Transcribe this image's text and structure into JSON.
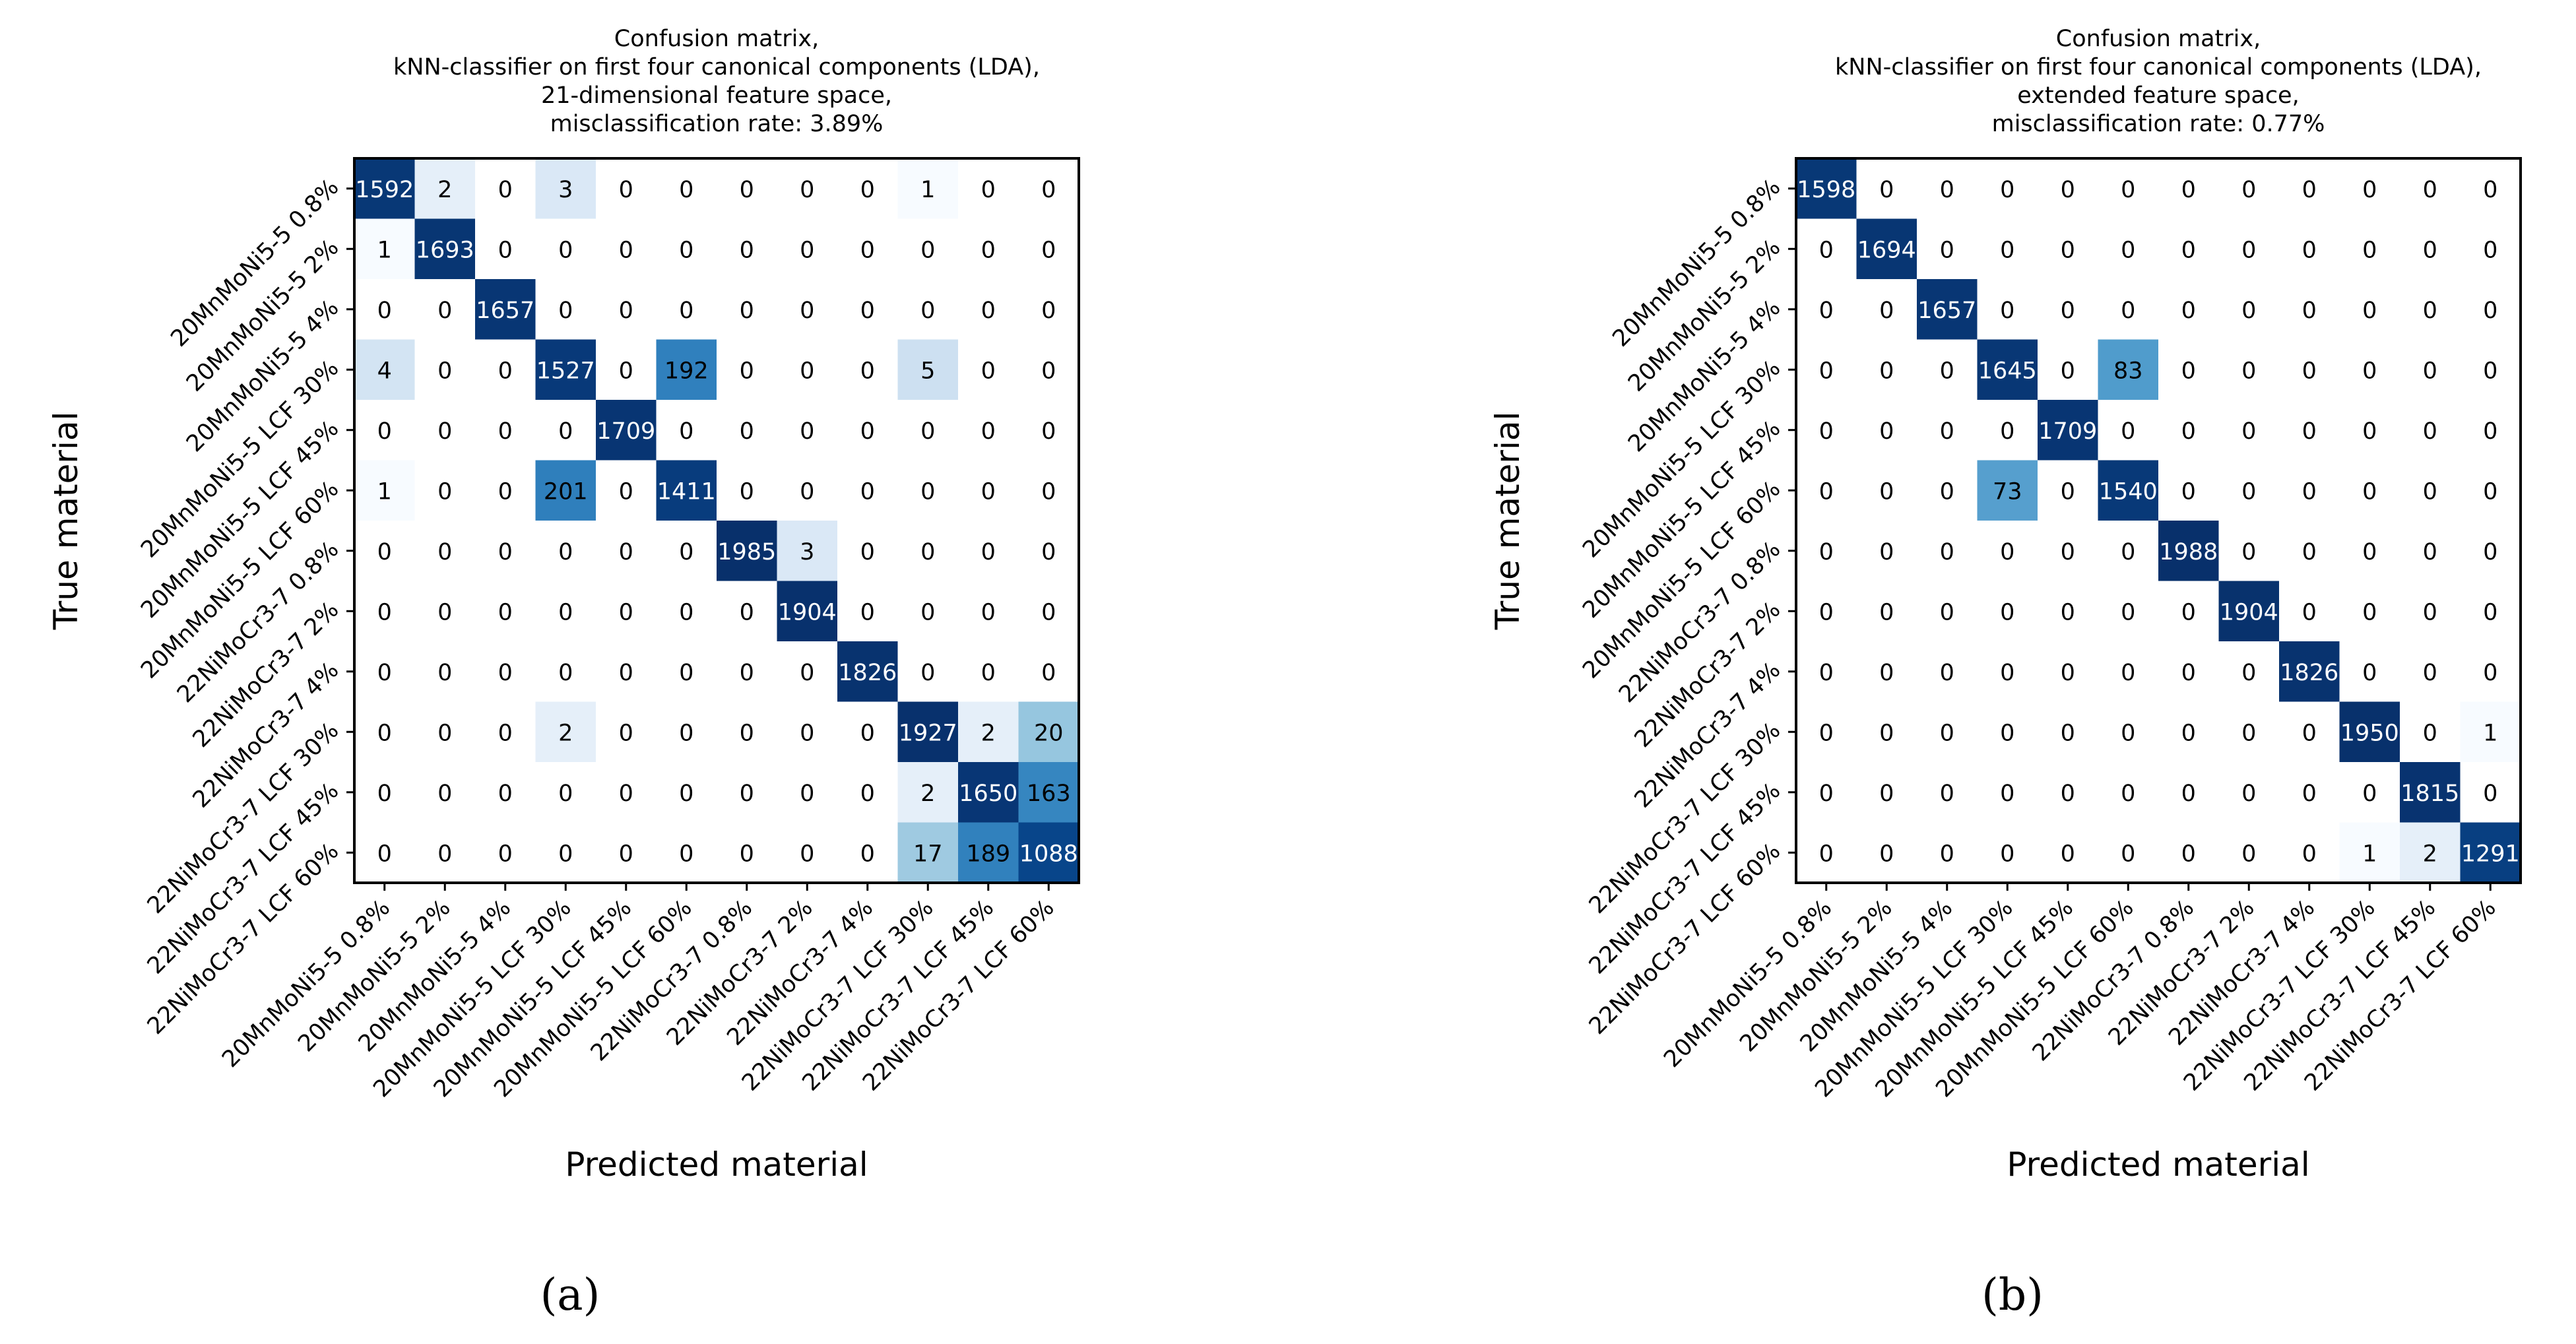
{
  "chart_data": [
    {
      "type": "heatmap",
      "panel_label": "(a)",
      "title_lines": [
        "Confusion matrix,",
        "kNN-classifier on first four canonical components (LDA),",
        "21-dimensional feature space,",
        "misclassification rate: 3.89%"
      ],
      "xlabel": "Predicted material",
      "ylabel": "True material",
      "categories": [
        "20MnMoNi5-5 0.8%",
        "20MnMoNi5-5 2%",
        "20MnMoNi5-5 4%",
        "20MnMoNi5-5 LCF 30%",
        "20MnMoNi5-5 LCF 45%",
        "20MnMoNi5-5 LCF 60%",
        "22NiMoCr3-7 0.8%",
        "22NiMoCr3-7 2%",
        "22NiMoCr3-7 4%",
        "22NiMoCr3-7 LCF 30%",
        "22NiMoCr3-7 LCF 45%",
        "22NiMoCr3-7 LCF 60%"
      ],
      "matrix": [
        [
          1592,
          2,
          0,
          3,
          0,
          0,
          0,
          0,
          0,
          1,
          0,
          0
        ],
        [
          1,
          1693,
          0,
          0,
          0,
          0,
          0,
          0,
          0,
          0,
          0,
          0
        ],
        [
          0,
          0,
          1657,
          0,
          0,
          0,
          0,
          0,
          0,
          0,
          0,
          0
        ],
        [
          4,
          0,
          0,
          1527,
          0,
          192,
          0,
          0,
          0,
          5,
          0,
          0
        ],
        [
          0,
          0,
          0,
          0,
          1709,
          0,
          0,
          0,
          0,
          0,
          0,
          0
        ],
        [
          1,
          0,
          0,
          201,
          0,
          1411,
          0,
          0,
          0,
          0,
          0,
          0
        ],
        [
          0,
          0,
          0,
          0,
          0,
          0,
          1985,
          3,
          0,
          0,
          0,
          0
        ],
        [
          0,
          0,
          0,
          0,
          0,
          0,
          0,
          1904,
          0,
          0,
          0,
          0
        ],
        [
          0,
          0,
          0,
          0,
          0,
          0,
          0,
          0,
          1826,
          0,
          0,
          0
        ],
        [
          0,
          0,
          0,
          2,
          0,
          0,
          0,
          0,
          0,
          1927,
          2,
          20
        ],
        [
          0,
          0,
          0,
          0,
          0,
          0,
          0,
          0,
          0,
          2,
          1650,
          163
        ],
        [
          0,
          0,
          0,
          0,
          0,
          0,
          0,
          0,
          0,
          17,
          189,
          1088
        ]
      ],
      "colormap": "Blues, log scale"
    },
    {
      "type": "heatmap",
      "panel_label": "(b)",
      "title_lines": [
        "Confusion matrix,",
        "kNN-classifier on first four canonical components (LDA),",
        "extended feature space,",
        "misclassification rate: 0.77%"
      ],
      "xlabel": "Predicted material",
      "ylabel": "True material",
      "categories": [
        "20MnMoNi5-5 0.8%",
        "20MnMoNi5-5 2%",
        "20MnMoNi5-5 4%",
        "20MnMoNi5-5 LCF 30%",
        "20MnMoNi5-5 LCF 45%",
        "20MnMoNi5-5 LCF 60%",
        "22NiMoCr3-7 0.8%",
        "22NiMoCr3-7 2%",
        "22NiMoCr3-7 4%",
        "22NiMoCr3-7 LCF 30%",
        "22NiMoCr3-7 LCF 45%",
        "22NiMoCr3-7 LCF 60%"
      ],
      "matrix": [
        [
          1598,
          0,
          0,
          0,
          0,
          0,
          0,
          0,
          0,
          0,
          0,
          0
        ],
        [
          0,
          1694,
          0,
          0,
          0,
          0,
          0,
          0,
          0,
          0,
          0,
          0
        ],
        [
          0,
          0,
          1657,
          0,
          0,
          0,
          0,
          0,
          0,
          0,
          0,
          0
        ],
        [
          0,
          0,
          0,
          1645,
          0,
          83,
          0,
          0,
          0,
          0,
          0,
          0
        ],
        [
          0,
          0,
          0,
          0,
          1709,
          0,
          0,
          0,
          0,
          0,
          0,
          0
        ],
        [
          0,
          0,
          0,
          73,
          0,
          1540,
          0,
          0,
          0,
          0,
          0,
          0
        ],
        [
          0,
          0,
          0,
          0,
          0,
          0,
          1988,
          0,
          0,
          0,
          0,
          0
        ],
        [
          0,
          0,
          0,
          0,
          0,
          0,
          0,
          1904,
          0,
          0,
          0,
          0
        ],
        [
          0,
          0,
          0,
          0,
          0,
          0,
          0,
          0,
          1826,
          0,
          0,
          0
        ],
        [
          0,
          0,
          0,
          0,
          0,
          0,
          0,
          0,
          0,
          1950,
          0,
          1
        ],
        [
          0,
          0,
          0,
          0,
          0,
          0,
          0,
          0,
          0,
          0,
          1815,
          0
        ],
        [
          0,
          0,
          0,
          0,
          0,
          0,
          0,
          0,
          0,
          1,
          2,
          1291
        ]
      ],
      "colormap": "Blues, log scale"
    }
  ]
}
